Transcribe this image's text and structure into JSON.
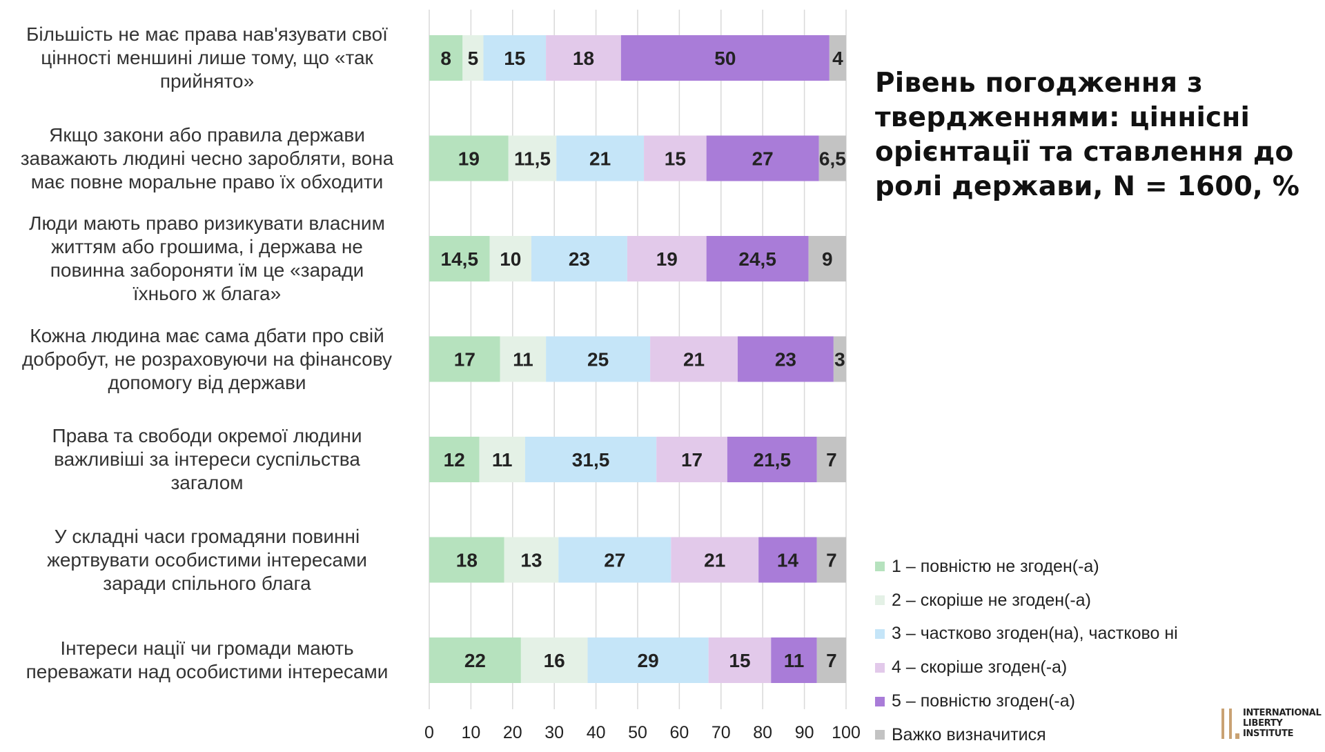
{
  "chart_data": {
    "type": "bar",
    "stacked": true,
    "orientation": "horizontal",
    "title": "Рівень погодження з твердженнями: ціннісні орієнтації та ставлення до ролі держави, N = 1600, %",
    "categories": [
      "Більшість не має права нав'язувати свої цінності меншині лише тому, що «так прийнято»",
      "Якщо закони або правила держави заважають людині чесно заробляти, вона має повне моральне право їх обходити",
      "Люди мають право ризикувати власним життям або грошима, і держава не повинна забороняти їм це «заради їхнього ж блага»",
      "Кожна людина має сама дбати про свій добробут, не розраховуючи на фінансову допомогу від держави",
      "Права та свободи окремої людини важливіші за інтереси суспільства загалом",
      "У складні часи громадяни повинні жертвувати особистими інтересами заради спільного блага",
      "Інтереси нації чи громади мають переважати над особистими інтересами"
    ],
    "category_lines": [
      [
        "Більшість не має права нав'язувати свої",
        "цінності меншині лише тому, що «так",
        "прийнято»"
      ],
      [
        "Якщо закони або правила держави",
        "заважають людині чесно заробляти, вона",
        "має повне моральне право їх обходити"
      ],
      [
        "Люди мають право ризикувати власним",
        "життям або грошима, і держава не",
        "повинна забороняти їм це «заради",
        "їхнього ж блага»"
      ],
      [
        "Кожна людина має сама дбати про свій",
        "добробут, не розраховуючи на фінансову",
        "допомогу від держави"
      ],
      [
        "Права та свободи окремої людини",
        "важливіші за інтереси суспільства",
        "загалом"
      ],
      [
        "У складні часи громадяни повинні",
        "жертвувати особистими інтересами",
        "заради спільного блага"
      ],
      [
        "Інтереси нації чи громади мають",
        "переважати над особистими інтересами"
      ]
    ],
    "series": [
      {
        "name": "1 – повністю не згоден(-а)",
        "color": "#b6e2be",
        "values": [
          8,
          19,
          14.5,
          17,
          12,
          18,
          22
        ],
        "labels": [
          "8",
          "19",
          "14,5",
          "17",
          "12",
          "18",
          "22"
        ]
      },
      {
        "name": "2 – скоріше не згоден(-а)",
        "color": "#e4f1e6",
        "values": [
          5,
          11.5,
          10,
          11,
          11,
          13,
          16
        ],
        "labels": [
          "5",
          "11,5",
          "10",
          "11",
          "11",
          "13",
          "16"
        ]
      },
      {
        "name": "3 – частково згоден(на), частково ні",
        "color": "#c5e5f8",
        "values": [
          15,
          21,
          23,
          25,
          31.5,
          27,
          29
        ],
        "labels": [
          "15",
          "21",
          "23",
          "25",
          "31,5",
          "27",
          "29"
        ]
      },
      {
        "name": "4 – скоріше згоден(-а)",
        "color": "#e2c9ea",
        "values": [
          18,
          15,
          19,
          21,
          17,
          21,
          15
        ],
        "labels": [
          "18",
          "15",
          "19",
          "21",
          "17",
          "21",
          "15"
        ]
      },
      {
        "name": "5 – повністю згоден(-а)",
        "color": "#a97cd8",
        "values": [
          50,
          27,
          24.5,
          23,
          21.5,
          14,
          11
        ],
        "labels": [
          "50",
          "27",
          "24,5",
          "23",
          "21,5",
          "14",
          "11"
        ]
      },
      {
        "name": "Важко визначитися",
        "color": "#c3c3c3",
        "values": [
          4,
          6.5,
          9,
          3,
          7,
          7,
          7
        ],
        "labels": [
          "4",
          "6,5",
          "9",
          "3",
          "7",
          "7",
          "7"
        ]
      }
    ],
    "xlim": [
      0,
      100
    ],
    "xticks": [
      "0",
      "10",
      "20",
      "30",
      "40",
      "50",
      "60",
      "70",
      "80",
      "90",
      "100"
    ],
    "grid": true,
    "legend_position": "bottom-right"
  },
  "logo": {
    "line1": "INTERNATIONAL",
    "line2": "LIBERTY INSTITUTE"
  }
}
